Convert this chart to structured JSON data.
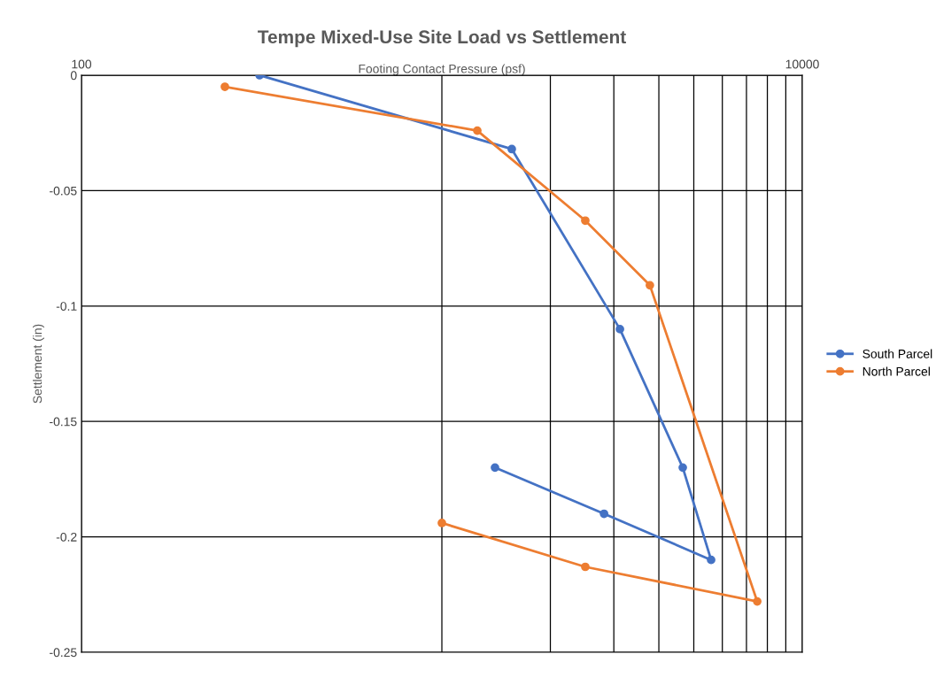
{
  "chart_data": {
    "type": "line",
    "title": "Tempe Mixed-Use Site Load vs Settlement",
    "xlabel": "Footing Contact Pressure (psf)",
    "ylabel": "Settlement (in)",
    "series": [
      {
        "name": "South Parcel",
        "color": "#4472c4",
        "x": [
          312,
          1563,
          3119,
          4660,
          5585,
          2818,
          1404
        ],
        "values": [
          0,
          -0.032,
          -0.11,
          -0.17,
          -0.21,
          -0.19,
          -0.17
        ]
      },
      {
        "name": "North Parcel",
        "color": "#ed7d31",
        "x": [
          250,
          1254,
          2500,
          3777,
          7499,
          2500,
          1000
        ],
        "values": [
          -0.005,
          -0.024,
          -0.063,
          -0.091,
          -0.228,
          -0.213,
          -0.194
        ]
      }
    ],
    "log": "x",
    "xlim": [
      100,
      10000
    ],
    "ylim": [
      -0.25,
      0
    ],
    "xticks": [
      100,
      {
        "value": 1000,
        "label": null
      },
      {
        "value": 2000,
        "label": null
      },
      {
        "value": 3000,
        "label": null
      },
      {
        "value": 4000,
        "label": null
      },
      {
        "value": 5000,
        "label": null
      },
      {
        "value": 6000,
        "label": null
      },
      {
        "value": 7000,
        "label": null
      },
      {
        "value": 8000,
        "label": null
      },
      {
        "value": 9000,
        "label": null
      },
      10000
    ],
    "yticks": [
      0,
      {
        "value": -0.05,
        "label": "-0.05"
      },
      {
        "value": -0.1,
        "label": "-0.1"
      },
      {
        "value": -0.15,
        "label": "-0.15"
      },
      {
        "value": -0.2,
        "label": "-0.2"
      },
      {
        "value": -0.25,
        "label": "-0.25"
      }
    ],
    "grid": true,
    "legend": "right",
    "marker": "circle",
    "line_style": "solid"
  }
}
